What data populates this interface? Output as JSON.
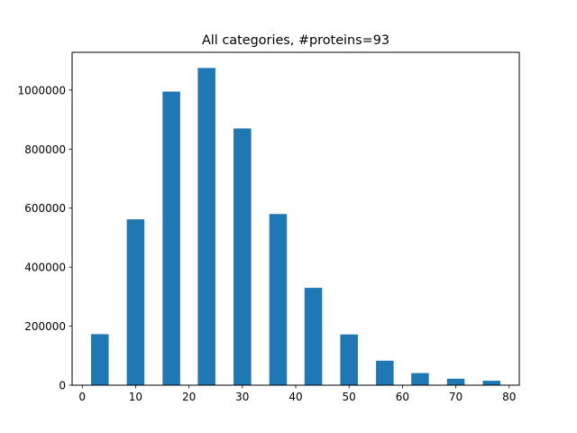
{
  "chart_data": {
    "type": "bar",
    "title": "All categories, #proteins=93",
    "xlabel": "",
    "ylabel": "",
    "xlim": [
      -1.9,
      81.9
    ],
    "ylim": [
      0,
      1128000
    ],
    "x_ticks": [
      0,
      10,
      20,
      30,
      40,
      50,
      60,
      70,
      80
    ],
    "y_ticks": [
      0,
      200000,
      400000,
      600000,
      800000,
      1000000
    ],
    "bar_width": 3.3,
    "grid": false,
    "bar_color": "#1f77b4",
    "series": [
      {
        "x": [
          3.3,
          10.0,
          16.7,
          23.3,
          30.0,
          36.7,
          43.3,
          50.0,
          56.7,
          63.3,
          70.0,
          76.7
        ],
        "values": [
          173000,
          562000,
          995000,
          1075000,
          870000,
          580000,
          330000,
          172000,
          83000,
          41000,
          22000,
          15000
        ]
      }
    ]
  }
}
